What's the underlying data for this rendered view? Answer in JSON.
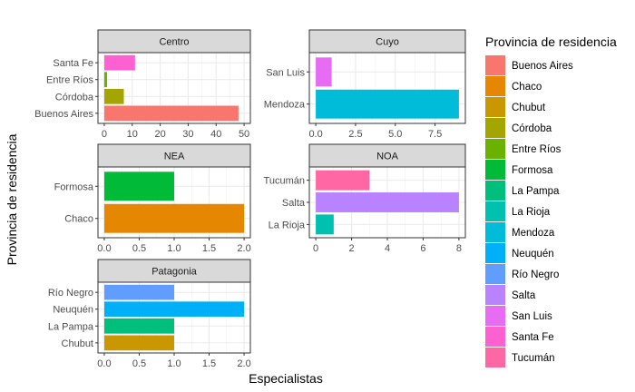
{
  "chart_data": {
    "type": "bar",
    "orientation": "horizontal",
    "faceted": true,
    "xlabel": "Especialistas",
    "ylabel": "Provincia de residencia",
    "grid": true,
    "legend": {
      "title": "Provincia de residencia",
      "placement": "right",
      "items": [
        {
          "label": "Buenos Aires",
          "color": "#F8766D"
        },
        {
          "label": "Chaco",
          "color": "#E58700"
        },
        {
          "label": "Chubut",
          "color": "#C99800"
        },
        {
          "label": "Córdoba",
          "color": "#A3A500"
        },
        {
          "label": "Entre Ríos",
          "color": "#6BB100"
        },
        {
          "label": "Formosa",
          "color": "#00BA38"
        },
        {
          "label": "La Pampa",
          "color": "#00BF7D"
        },
        {
          "label": "La Rioja",
          "color": "#00C0AF"
        },
        {
          "label": "Mendoza",
          "color": "#00BCD8"
        },
        {
          "label": "Neuquén",
          "color": "#00B0F6"
        },
        {
          "label": "Río Negro",
          "color": "#619CFF"
        },
        {
          "label": "Salta",
          "color": "#B983FF"
        },
        {
          "label": "San Luis",
          "color": "#E76BF3"
        },
        {
          "label": "Santa Fe",
          "color": "#FD61D1"
        },
        {
          "label": "Tucumán",
          "color": "#FF67A4"
        }
      ]
    },
    "facets": [
      {
        "name": "Centro",
        "xlim": [
          0,
          50
        ],
        "xticks": [
          0,
          10,
          20,
          30,
          40,
          50
        ],
        "categories": [
          "Buenos Aires",
          "Córdoba",
          "Entre Ríos",
          "Santa Fe"
        ],
        "values": [
          48,
          7,
          1,
          11
        ]
      },
      {
        "name": "Cuyo",
        "xlim": [
          0,
          9
        ],
        "xticks": [
          0.0,
          2.5,
          5.0,
          7.5
        ],
        "xtick_labels": [
          "0.0",
          "2.5",
          "5.0",
          "7.5"
        ],
        "categories": [
          "Mendoza",
          "San Luis"
        ],
        "values": [
          9,
          1
        ]
      },
      {
        "name": "NEA",
        "xlim": [
          0,
          2
        ],
        "xticks": [
          0.0,
          0.5,
          1.0,
          1.5,
          2.0
        ],
        "xtick_labels": [
          "0.0",
          "0.5",
          "1.0",
          "1.5",
          "2.0"
        ],
        "categories": [
          "Chaco",
          "Formosa"
        ],
        "values": [
          2,
          1
        ]
      },
      {
        "name": "NOA",
        "xlim": [
          0,
          8
        ],
        "xticks": [
          0,
          2,
          4,
          6,
          8
        ],
        "categories": [
          "La Rioja",
          "Salta",
          "Tucumán"
        ],
        "values": [
          1,
          8,
          3
        ]
      },
      {
        "name": "Patagonia",
        "xlim": [
          0,
          2
        ],
        "xticks": [
          0.0,
          0.5,
          1.0,
          1.5,
          2.0
        ],
        "xtick_labels": [
          "0.0",
          "0.5",
          "1.0",
          "1.5",
          "2.0"
        ],
        "categories": [
          "Chubut",
          "La Pampa",
          "Neuquén",
          "Río Negro"
        ],
        "values": [
          1,
          1,
          2,
          1
        ]
      }
    ]
  }
}
